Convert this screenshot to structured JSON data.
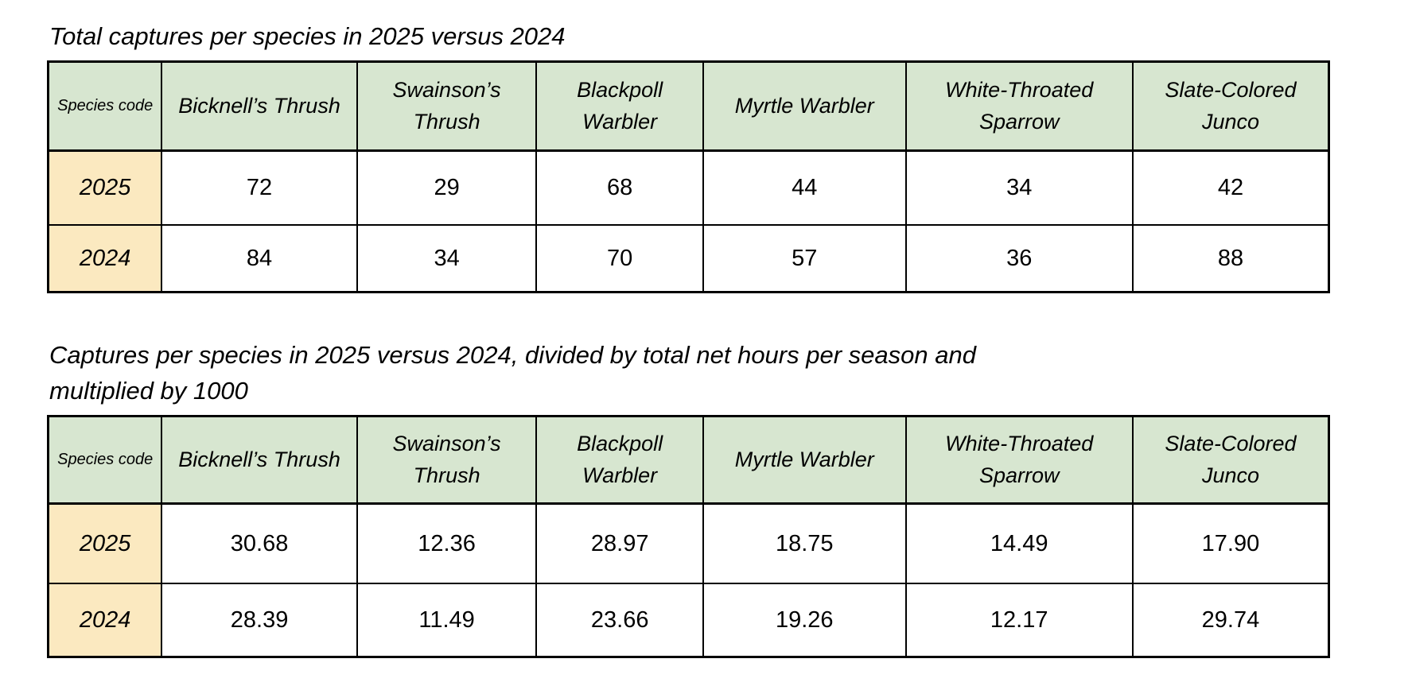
{
  "colors": {
    "header_green": "#d7e6d0",
    "year_yellow": "#fbe9c0",
    "border_black": "#000000",
    "page_background": "#ffffff"
  },
  "table1": {
    "title": "Total captures per species in 2025 versus 2024",
    "corner_header": "Species code",
    "columns": [
      "Bicknell’s Thrush",
      "Swainson’s Thrush",
      "Blackpoll Warbler",
      "Myrtle Warbler",
      "White-Throated Sparrow",
      "Slate-Colored Junco"
    ],
    "rows": [
      {
        "year": "2025",
        "values": [
          "72",
          "29",
          "68",
          "44",
          "34",
          "42"
        ]
      },
      {
        "year": "2024",
        "values": [
          "84",
          "34",
          "70",
          "57",
          "36",
          "88"
        ]
      }
    ]
  },
  "table2": {
    "title": "Captures per species in 2025 versus 2024, divided by total net hours per season and\nmultiplied by 1000",
    "corner_header": "Species code",
    "columns": [
      "Bicknell’s Thrush",
      "Swainson’s Thrush",
      "Blackpoll Warbler",
      "Myrtle Warbler",
      "White-Throated Sparrow",
      "Slate-Colored Junco"
    ],
    "rows": [
      {
        "year": "2025",
        "values": [
          "30.68",
          "12.36",
          "28.97",
          "18.75",
          "14.49",
          "17.90"
        ]
      },
      {
        "year": "2024",
        "values": [
          "28.39",
          "11.49",
          "23.66",
          "19.26",
          "12.17",
          "29.74"
        ]
      }
    ]
  },
  "chart_data": [
    {
      "type": "table",
      "title": "Total captures per species in 2025 versus 2024",
      "columns": [
        "Species code",
        "Bicknell’s Thrush",
        "Swainson’s Thrush",
        "Blackpoll Warbler",
        "Myrtle Warbler",
        "White-Throated Sparrow",
        "Slate-Colored Junco"
      ],
      "rows": [
        [
          "2025",
          72,
          29,
          68,
          44,
          34,
          42
        ],
        [
          "2024",
          84,
          34,
          70,
          57,
          36,
          88
        ]
      ]
    },
    {
      "type": "table",
      "title": "Captures per species in 2025 versus 2024, divided by total net hours per season and multiplied by 1000",
      "columns": [
        "Species code",
        "Bicknell’s Thrush",
        "Swainson’s Thrush",
        "Blackpoll Warbler",
        "Myrtle Warbler",
        "White-Throated Sparrow",
        "Slate-Colored Junco"
      ],
      "rows": [
        [
          "2025",
          30.68,
          12.36,
          28.97,
          18.75,
          14.49,
          17.9
        ],
        [
          "2024",
          28.39,
          11.49,
          23.66,
          19.26,
          12.17,
          29.74
        ]
      ]
    }
  ]
}
